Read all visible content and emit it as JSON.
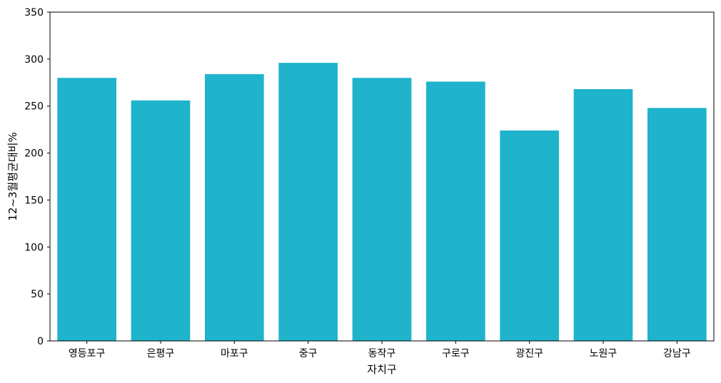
{
  "chart_data": {
    "type": "bar",
    "categories": [
      "영등포구",
      "은평구",
      "마포구",
      "중구",
      "동작구",
      "구로구",
      "광진구",
      "노원구",
      "강남구"
    ],
    "values": [
      280,
      256,
      284,
      296,
      280,
      276,
      224,
      268,
      248
    ],
    "xlabel": "자치구",
    "ylabel": "12~3월평균대비%",
    "ylim": [
      0,
      350
    ],
    "yticks": [
      0,
      50,
      100,
      150,
      200,
      250,
      300,
      350
    ],
    "bar_color": "#1fb3cc",
    "grid": false
  }
}
